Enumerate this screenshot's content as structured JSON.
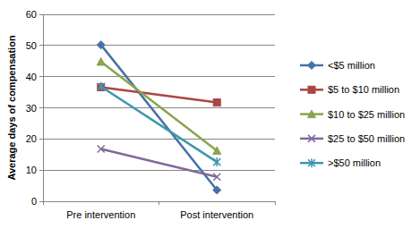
{
  "chart_data": {
    "type": "line",
    "y_label": "Average days of compensation",
    "categories": [
      "Pre intervention",
      "Post intervention"
    ],
    "series": [
      {
        "name": "<$5 million",
        "color": "#4572a7",
        "marker": "diamond",
        "values": [
          50.2,
          3.6
        ]
      },
      {
        "name": "$5 to $10 million",
        "color": "#aa4643",
        "marker": "square",
        "values": [
          36.6,
          31.7
        ]
      },
      {
        "name": "$10 to $25 million",
        "color": "#89a54e",
        "marker": "triangle",
        "values": [
          44.8,
          16.2
        ]
      },
      {
        "name": "$25 to $50 million",
        "color": "#80699b",
        "marker": "x",
        "values": [
          16.8,
          7.8
        ]
      },
      {
        "name": ">$50 million",
        "color": "#3d96ae",
        "marker": "star",
        "values": [
          36.8,
          12.6
        ]
      }
    ],
    "ylim": [
      0,
      60
    ],
    "yticks": [
      0,
      10,
      20,
      30,
      40,
      50,
      60
    ],
    "grid": true,
    "legend": "right"
  }
}
